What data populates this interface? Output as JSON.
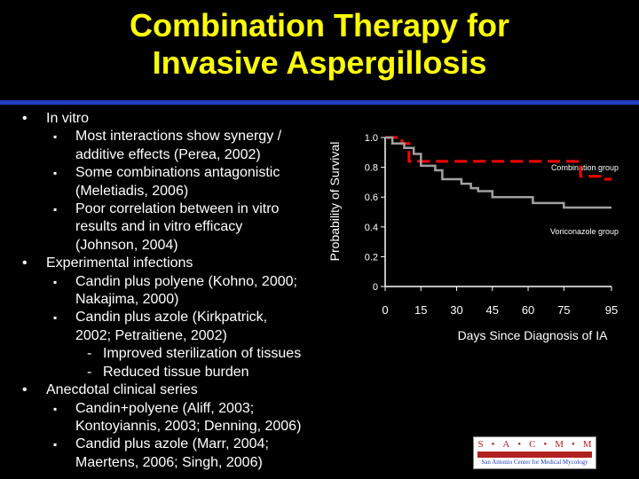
{
  "slide": {
    "title_line1": "Combination Therapy for",
    "title_line2": "Invasive Aspergillosis",
    "title_color": "#FFFF00",
    "rule_color": "#1F3FBF"
  },
  "bullets": {
    "marker_l1": "•",
    "marker_l2": "▪",
    "marker_l3": "-",
    "in_vitro": "In vitro",
    "in_vitro_1a": "Most interactions show synergy /",
    "in_vitro_1b": "additive effects (Perea, 2002)",
    "in_vitro_2a": "Some combinations antagonistic",
    "in_vitro_2b": "(Meletiadis, 2006)",
    "in_vitro_3a": "Poor correlation between in vitro",
    "in_vitro_3b": "results and in vitro efficacy",
    "in_vitro_3c": "(Johnson, 2004)",
    "experimental": "Experimental infections",
    "exp_1a": "Candin plus polyene (Kohno, 2000;",
    "exp_1b": "Nakajima, 2000)",
    "exp_2a": "Candin plus azole (Kirkpatrick,",
    "exp_2b": "2002; Petraitiene, 2002)",
    "exp_2_sub1": "Improved sterilization of tissues",
    "exp_2_sub2": "Reduced tissue burden",
    "anecdotal": "Anecdotal clinical series",
    "anec_1a": "Candin+polyene (Aliff, 2003;",
    "anec_1b": "Kontoyiannis, 2003; Denning, 2006)",
    "anec_2a": "Candid plus azole (Marr, 2004;",
    "anec_2b": "Maertens, 2006; Singh, 2006)"
  },
  "chart_data": {
    "type": "line",
    "ylabel": "Probability of Survival",
    "xlabel": "Days Since Diagnosis of IA",
    "xlim": [
      0,
      95
    ],
    "ylim": [
      0,
      1.0
    ],
    "x_ticks": [
      "0",
      "15",
      "30",
      "45",
      "60",
      "75",
      "95"
    ],
    "x_tick_values": [
      0,
      15,
      30,
      45,
      60,
      75,
      95
    ],
    "y_ticks": [
      "0",
      "0.2",
      "0.4",
      "0.6",
      "0.8",
      "1.0"
    ],
    "y_tick_values": [
      0,
      0.2,
      0.4,
      0.6,
      0.8,
      1.0
    ],
    "grid": false,
    "series": [
      {
        "name": "Combination group",
        "color": "#FF0000",
        "style": "dashed",
        "points": [
          [
            0,
            1.0
          ],
          [
            7,
            1.0
          ],
          [
            7,
            0.96
          ],
          [
            10,
            0.96
          ],
          [
            10,
            0.84
          ],
          [
            82,
            0.84
          ],
          [
            82,
            0.74
          ],
          [
            92,
            0.74
          ],
          [
            92,
            0.72
          ],
          [
            95,
            0.72
          ]
        ]
      },
      {
        "name": "Voriconazole group",
        "color": "#A0A0A0",
        "style": "solid",
        "points": [
          [
            0,
            1.0
          ],
          [
            3,
            1.0
          ],
          [
            3,
            0.96
          ],
          [
            8,
            0.96
          ],
          [
            8,
            0.93
          ],
          [
            12,
            0.93
          ],
          [
            12,
            0.89
          ],
          [
            15,
            0.89
          ],
          [
            15,
            0.81
          ],
          [
            21,
            0.81
          ],
          [
            21,
            0.78
          ],
          [
            24,
            0.78
          ],
          [
            24,
            0.72
          ],
          [
            32,
            0.72
          ],
          [
            32,
            0.69
          ],
          [
            36,
            0.69
          ],
          [
            36,
            0.66
          ],
          [
            39,
            0.66
          ],
          [
            39,
            0.64
          ],
          [
            45,
            0.64
          ],
          [
            45,
            0.6
          ],
          [
            62,
            0.6
          ],
          [
            62,
            0.56
          ],
          [
            75,
            0.56
          ],
          [
            75,
            0.53
          ],
          [
            95,
            0.53
          ]
        ]
      }
    ]
  },
  "logo": {
    "letters": [
      "S",
      "A",
      "C",
      "M",
      "M"
    ],
    "separator": "•",
    "bar_color": "#B22222",
    "subtitle": "San Antonio Center for Medical Mycology"
  }
}
